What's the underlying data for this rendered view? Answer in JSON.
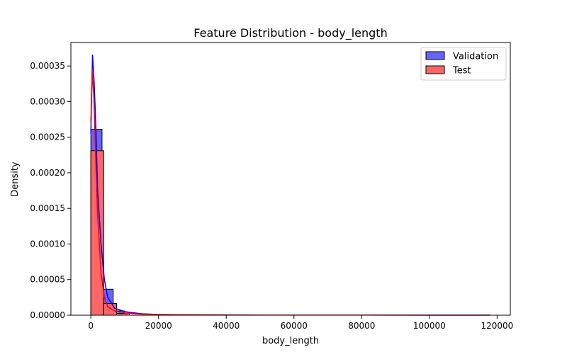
{
  "chart_data": {
    "type": "histogram",
    "title": "Feature Distribution - body_length",
    "xlabel": "body_length",
    "ylabel": "Density",
    "xlim": [
      -5900,
      123900
    ],
    "ylim": [
      0,
      0.000383
    ],
    "x_ticks": [
      0,
      20000,
      40000,
      60000,
      80000,
      100000,
      120000
    ],
    "x_tick_labels": [
      "0",
      "20000",
      "40000",
      "60000",
      "80000",
      "100000",
      "120000"
    ],
    "y_ticks": [
      0,
      5e-05,
      0.0001,
      0.00015,
      0.0002,
      0.00025,
      0.0003,
      0.00035
    ],
    "y_tick_labels": [
      "0.00000",
      "0.00005",
      "0.00010",
      "0.00015",
      "0.00020",
      "0.00025",
      "0.00030",
      "0.00035"
    ],
    "legend_position": "upper right",
    "series": [
      {
        "name": "Validation",
        "color": "#0000ff",
        "bins": [
          {
            "x0": 0,
            "x1": 3300,
            "density": 0.000261
          },
          {
            "x0": 3300,
            "x1": 6600,
            "density": 3.65e-05
          },
          {
            "x0": 6600,
            "x1": 9900,
            "density": 6e-06
          }
        ],
        "kde": [
          [
            0,
            0.000255
          ],
          [
            500,
            0.000366
          ],
          [
            1000,
            0.000325
          ],
          [
            1500,
            0.00026
          ],
          [
            2000,
            0.000175
          ],
          [
            3000,
            0.0001
          ],
          [
            4000,
            5e-05
          ],
          [
            5000,
            2.5e-05
          ],
          [
            7000,
            1e-05
          ],
          [
            10000,
            5e-06
          ],
          [
            15000,
            2e-06
          ],
          [
            20000,
            1e-06
          ],
          [
            30000,
            5e-07
          ],
          [
            50000,
            3e-07
          ],
          [
            80000,
            2e-07
          ],
          [
            118000,
            1e-07
          ]
        ]
      },
      {
        "name": "Test",
        "color": "#ff0000",
        "bins": [
          {
            "x0": 0,
            "x1": 3800,
            "density": 0.000231
          },
          {
            "x0": 3800,
            "x1": 7600,
            "density": 1.65e-05
          },
          {
            "x0": 7600,
            "x1": 11400,
            "density": 2.5e-06
          }
        ],
        "kde": [
          [
            0,
            0.00027
          ],
          [
            400,
            0.000345
          ],
          [
            900,
            0.000305
          ],
          [
            1500,
            0.00021
          ],
          [
            2000,
            0.00014
          ],
          [
            3000,
            6e-05
          ],
          [
            4000,
            2.5e-05
          ],
          [
            5000,
            1.2e-05
          ],
          [
            7000,
            6e-06
          ],
          [
            10000,
            3e-06
          ],
          [
            15000,
            1.5e-06
          ],
          [
            20000,
            1e-06
          ],
          [
            30000,
            6e-07
          ],
          [
            50000,
            3e-07
          ],
          [
            80000,
            2e-07
          ],
          [
            118000,
            1e-07
          ]
        ]
      }
    ]
  }
}
